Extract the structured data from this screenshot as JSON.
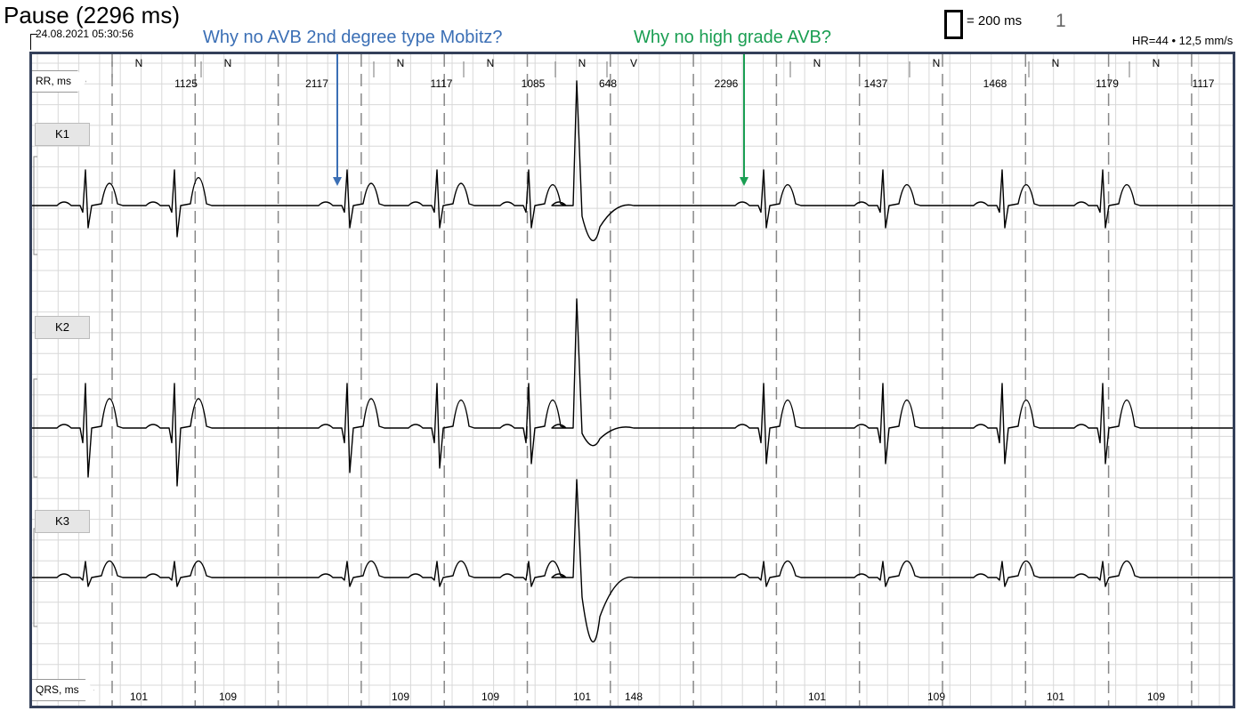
{
  "header": {
    "title": "Pause (2296 ms)",
    "timestamp": "24.08.2021 05:30:56",
    "scale_label": "= 200 ms",
    "page_number": "1",
    "hr_info": "HR=44 • 12,5 mm/s"
  },
  "annotations": [
    {
      "text": "Why no AVB 2nd degree type Mobitz?",
      "color": "#3b6fb5"
    },
    {
      "text": "Why no high grade AVB?",
      "color": "#1a9e52"
    }
  ],
  "rows": {
    "rr_label": "RR, ms",
    "qrs_label": "QRS, ms"
  },
  "leads": [
    {
      "name": "K1"
    },
    {
      "name": "K2"
    },
    {
      "name": "K3"
    }
  ],
  "beats": [
    {
      "type": "N",
      "qrs": "101"
    },
    {
      "type": "N",
      "qrs": "109"
    },
    {
      "type": "N",
      "qrs": "109"
    },
    {
      "type": "N",
      "qrs": "109"
    },
    {
      "type": "N",
      "qrs": "101"
    },
    {
      "type": "V",
      "qrs": "148"
    },
    {
      "type": "N",
      "qrs": "101"
    },
    {
      "type": "N",
      "qrs": "109"
    },
    {
      "type": "N",
      "qrs": "101"
    },
    {
      "type": "N",
      "qrs": "109"
    }
  ],
  "rr_intervals": [
    "1125",
    "2117",
    "1117",
    "1085",
    "648",
    "2296",
    "1437",
    "1468",
    "1179",
    "1117"
  ],
  "colors": {
    "frame": "#34405a",
    "grid": "#d8d8d8",
    "trace": "#000000",
    "annotation_blue": "#3b6fb5",
    "annotation_green": "#1a9e52"
  }
}
